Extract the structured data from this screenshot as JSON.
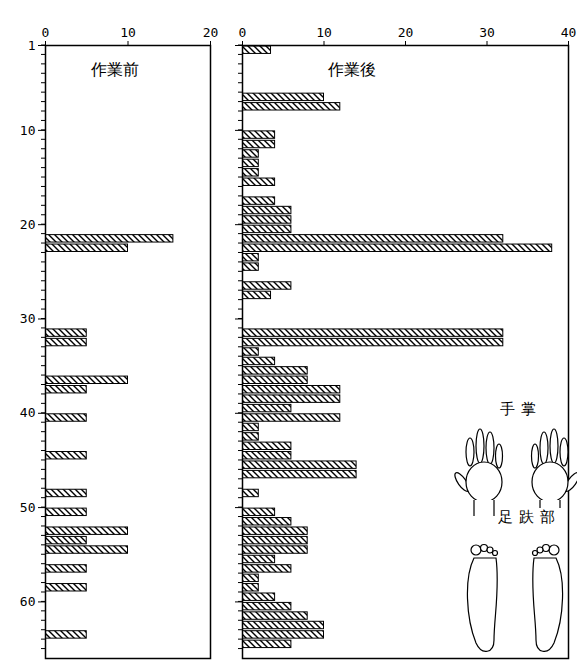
{
  "chart_data": [
    {
      "type": "bar",
      "orientation": "horizontal",
      "title": "作業前",
      "categories": [
        21,
        22,
        31,
        32,
        36,
        37,
        40,
        44,
        48,
        50,
        52,
        53,
        54,
        56,
        58,
        63
      ],
      "values": [
        15.5,
        10,
        5,
        5,
        10,
        5,
        5,
        5,
        5,
        5,
        10,
        5,
        10,
        5,
        5,
        5
      ],
      "color": "#000000",
      "xlim": [
        0,
        20
      ],
      "xticks": [
        0,
        10,
        20
      ],
      "ylim": [
        1,
        66
      ],
      "yticks": [
        1,
        10,
        20,
        30,
        40,
        50,
        60
      ]
    },
    {
      "type": "bar",
      "orientation": "horizontal",
      "title": "作業後",
      "categories": [
        1,
        6,
        7,
        10,
        11,
        12,
        13,
        14,
        15,
        17,
        18,
        19,
        20,
        21,
        22,
        23,
        24,
        26,
        27,
        31,
        32,
        33,
        34,
        35,
        36,
        37,
        38,
        39,
        40,
        41,
        42,
        43,
        44,
        45,
        46,
        48,
        50,
        51,
        52,
        53,
        54,
        55,
        56,
        57,
        58,
        59,
        60,
        61,
        62,
        63,
        64
      ],
      "values": [
        3.5,
        10,
        12,
        4,
        4,
        2,
        2,
        2,
        4,
        4,
        6,
        6,
        6,
        32,
        38,
        2,
        2,
        6,
        3.5,
        32,
        32,
        2,
        4,
        8,
        8,
        12,
        12,
        6,
        12,
        2,
        2,
        6,
        6,
        14,
        14,
        2,
        4,
        6,
        8,
        8,
        8,
        4,
        6,
        2,
        2,
        4,
        6,
        8,
        10,
        10,
        6
      ],
      "color": "#000000",
      "xlim": [
        0,
        40
      ],
      "xticks": [
        0,
        10,
        20,
        30,
        40
      ],
      "ylim": [
        1,
        66
      ],
      "yticks": [
        1,
        10,
        20,
        30,
        40,
        50,
        60
      ],
      "tick_labels": "x",
      "annotations": [
        "手掌",
        "足趺部"
      ]
    }
  ]
}
